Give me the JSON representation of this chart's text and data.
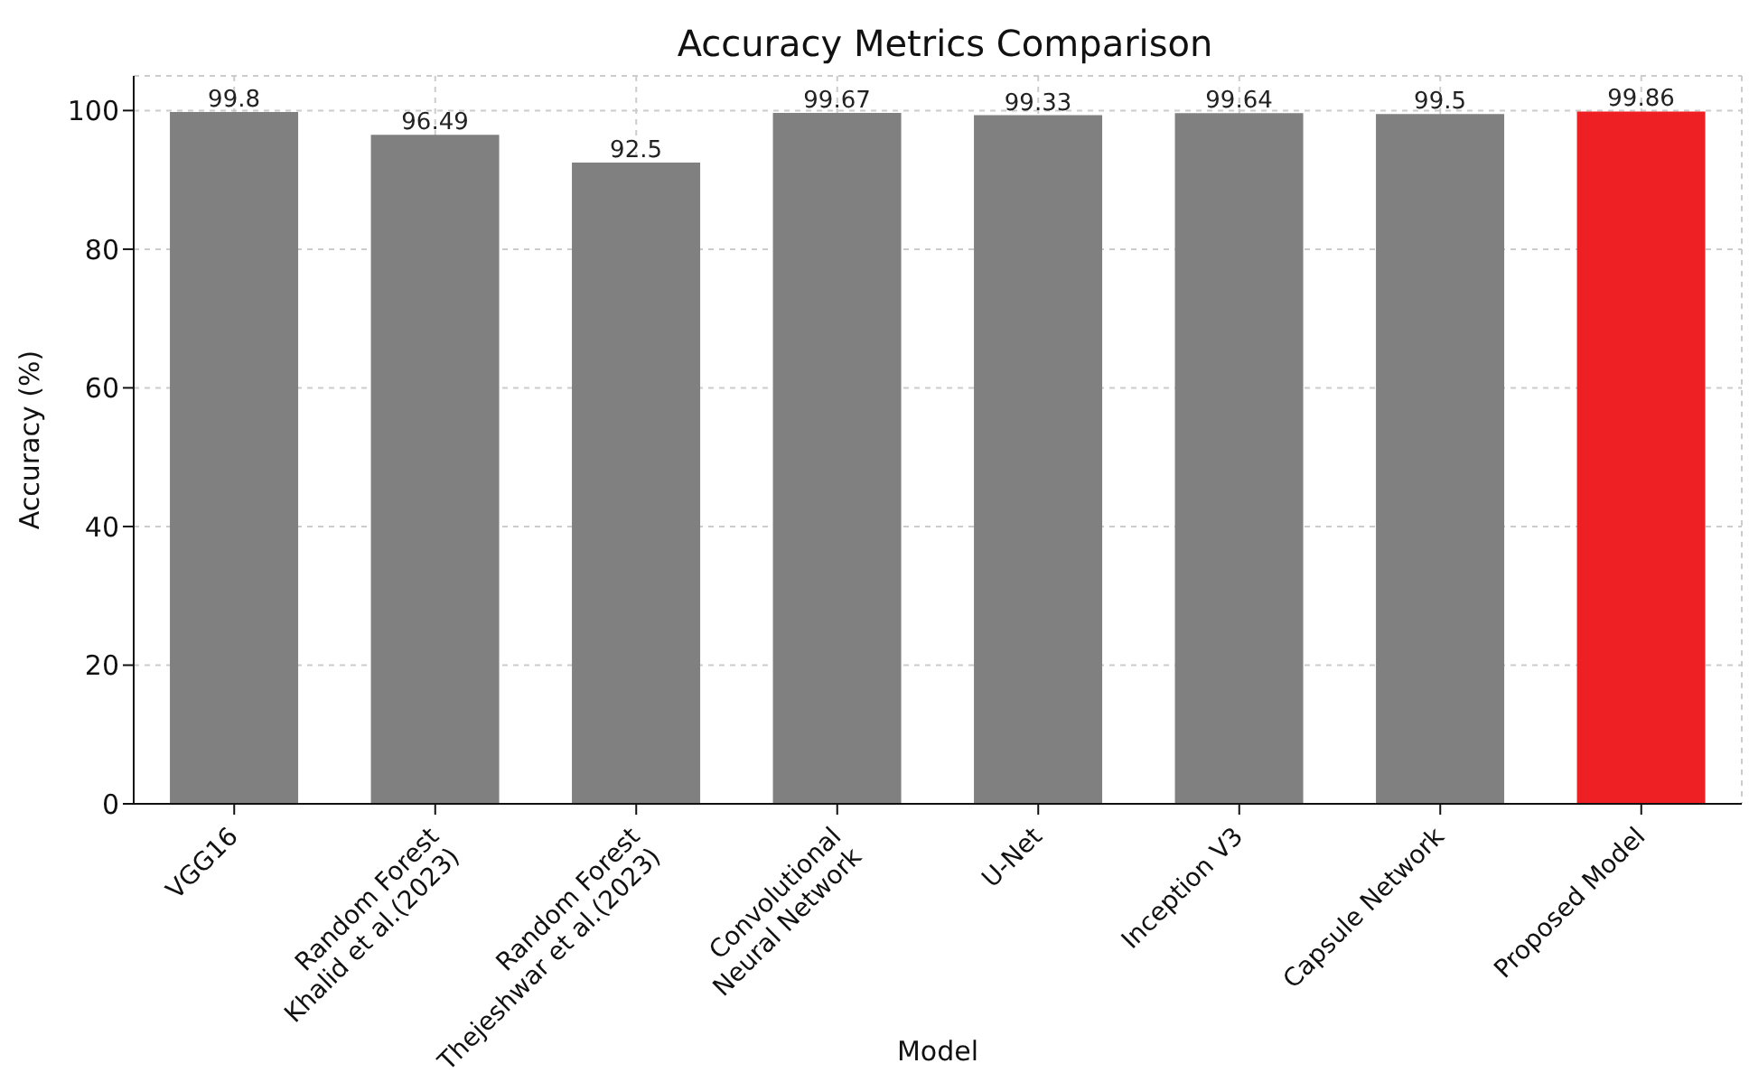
{
  "chart_data": {
    "type": "bar",
    "title": "Accuracy Metrics Comparison",
    "xlabel": "Model",
    "ylabel": "Accuracy (%)",
    "categories": [
      "VGG16",
      "Random Forest\nKhalid et al.(2023)",
      "Random Forest\nThejeshwar et al.(2023)",
      "Convolutional\nNeural Network",
      "U-Net",
      "Inception V3",
      "Capsule Network",
      "Proposed Model"
    ],
    "values": [
      99.8,
      96.49,
      92.5,
      99.67,
      99.33,
      99.64,
      99.5,
      99.86
    ],
    "colors": [
      "#808080",
      "#808080",
      "#808080",
      "#808080",
      "#808080",
      "#808080",
      "#808080",
      "#ee2024"
    ],
    "ylim": [
      0,
      105
    ],
    "yticks": [
      0,
      20,
      40,
      60,
      80,
      100
    ],
    "grid": true,
    "data_labels": true
  }
}
